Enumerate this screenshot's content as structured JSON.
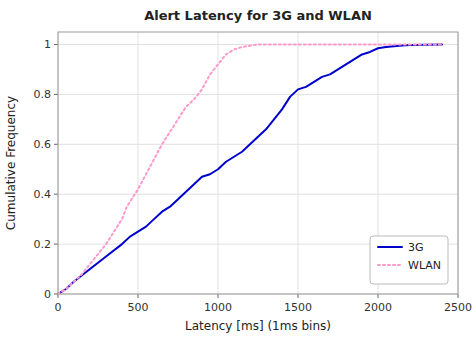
{
  "chart_data": {
    "type": "line",
    "title": "Alert Latency for 3G and WLAN",
    "xlabel": "Latency [ms] (1ms bins)",
    "ylabel": "Cumulative Frequency",
    "xlim": [
      0,
      2500
    ],
    "ylim": [
      0,
      1.05
    ],
    "xticks": [
      0,
      500,
      1000,
      1500,
      2000,
      2500
    ],
    "yticks": [
      0,
      0.2,
      0.4,
      0.6,
      0.8,
      1
    ],
    "grid": true,
    "legend": "lower right",
    "series": [
      {
        "name": "3G",
        "color": "#0000cc",
        "line_style": "solid",
        "x": [
          0,
          50,
          100,
          200,
          300,
          400,
          450,
          500,
          550,
          600,
          650,
          700,
          750,
          800,
          850,
          900,
          950,
          1000,
          1050,
          1100,
          1150,
          1200,
          1250,
          1300,
          1350,
          1400,
          1450,
          1500,
          1550,
          1600,
          1650,
          1700,
          1750,
          1800,
          1850,
          1900,
          1950,
          2000,
          2050,
          2100,
          2150,
          2200,
          2400
        ],
        "values": [
          0.0,
          0.02,
          0.05,
          0.1,
          0.15,
          0.2,
          0.23,
          0.25,
          0.27,
          0.3,
          0.33,
          0.35,
          0.38,
          0.41,
          0.44,
          0.47,
          0.48,
          0.5,
          0.53,
          0.55,
          0.57,
          0.6,
          0.63,
          0.66,
          0.7,
          0.74,
          0.79,
          0.82,
          0.83,
          0.85,
          0.87,
          0.88,
          0.9,
          0.92,
          0.94,
          0.96,
          0.97,
          0.985,
          0.99,
          0.993,
          0.996,
          0.998,
          1.0
        ]
      },
      {
        "name": "WLAN",
        "color": "#ff99cc",
        "line_style": "dotted",
        "x": [
          0,
          50,
          100,
          150,
          200,
          250,
          300,
          350,
          400,
          430,
          460,
          500,
          550,
          600,
          650,
          700,
          750,
          800,
          850,
          900,
          950,
          1000,
          1050,
          1100,
          1150,
          1200,
          1250,
          2400
        ],
        "values": [
          0.0,
          0.02,
          0.05,
          0.08,
          0.12,
          0.16,
          0.2,
          0.25,
          0.3,
          0.35,
          0.38,
          0.42,
          0.48,
          0.54,
          0.6,
          0.65,
          0.7,
          0.75,
          0.78,
          0.82,
          0.88,
          0.92,
          0.96,
          0.98,
          0.99,
          0.995,
          1.0,
          1.0
        ]
      }
    ]
  }
}
